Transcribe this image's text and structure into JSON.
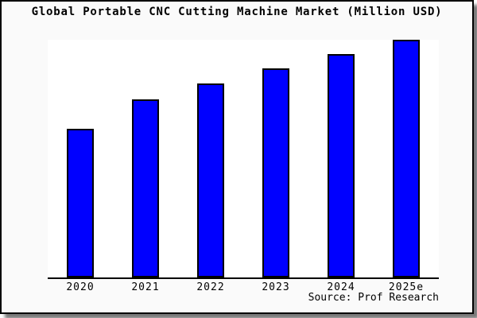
{
  "panel": {
    "background": "#fafafa",
    "border_color": "#000000",
    "shadow_color": "#7a7a7a"
  },
  "header": {
    "title": "Global Portable CNC Cutting Machine Market (Million USD)"
  },
  "footer": {
    "source": "Source: Prof Research"
  },
  "chart_data": {
    "type": "bar",
    "title": "Global Portable CNC Cutting Machine Market (Million USD)",
    "categories": [
      "2020",
      "2021",
      "2022",
      "2023",
      "2024",
      "2025e"
    ],
    "values_pct_of_max": [
      62.5,
      75,
      81.5,
      88,
      94,
      100
    ],
    "values_note": "Chart shows no numeric y-axis or data labels; values are bar heights measured as percent of the tallest bar (2025e = 100).",
    "xlabel": "",
    "ylabel": "",
    "ylim_pct": [
      0,
      100
    ],
    "grid": false,
    "legend": "none",
    "bar_color": "#0000ff",
    "bar_border_color": "#000000",
    "axis_color": "#000000",
    "plot_background": "#ffffff",
    "source": "Source: Prof Research"
  }
}
